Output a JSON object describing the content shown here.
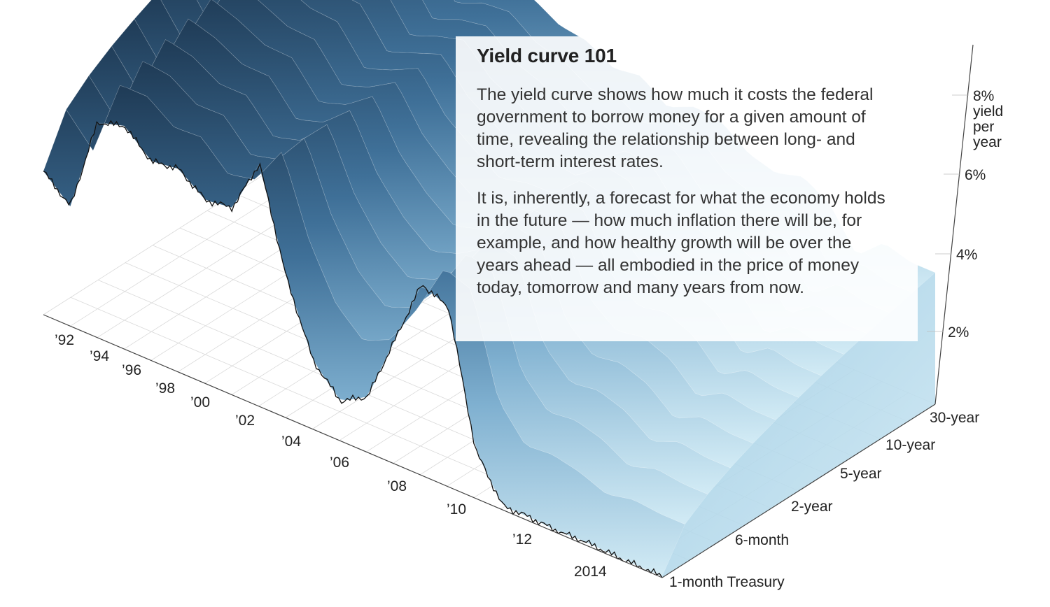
{
  "chart_data": {
    "type": "area",
    "x_axis_ticks": [
      "’92",
      "’94",
      "’96",
      "’98",
      "’00",
      "’02",
      "’04",
      "’06",
      "’08",
      "’10",
      "’12",
      "2014"
    ],
    "maturity_axis_ticks": [
      "1-month Treasury",
      "6-month",
      "2-year",
      "5-year",
      "10-year",
      "30-year"
    ],
    "yield_axis_ticks": [
      "2%",
      "4%",
      "6%",
      "8%"
    ],
    "yield_axis_label": [
      "yield",
      "per",
      "year"
    ],
    "ylim": [
      0,
      8
    ],
    "grid": true,
    "series": [
      {
        "values_by_year": [
          [
            1992,
            3.6
          ],
          [
            1993,
            3.0
          ],
          [
            1994,
            5.4
          ],
          [
            1995,
            5.6
          ],
          [
            1996,
            5.0
          ],
          [
            1997,
            5.1
          ],
          [
            1998,
            4.6
          ],
          [
            1999,
            4.7
          ],
          [
            2000,
            6.1
          ],
          [
            2001,
            3.5
          ],
          [
            2002,
            1.7
          ],
          [
            2003,
            1.0
          ],
          [
            2004,
            1.4
          ],
          [
            2005,
            3.1
          ],
          [
            2006,
            4.8
          ],
          [
            2007,
            4.5
          ],
          [
            2008,
            1.2
          ],
          [
            2009,
            0.1
          ],
          [
            2010,
            0.1
          ],
          [
            2011,
            0.05
          ],
          [
            2012,
            0.08
          ],
          [
            2013,
            0.05
          ],
          [
            2014,
            0.03
          ]
        ]
      },
      {
        "values_by_year": [
          [
            1992,
            7.7
          ],
          [
            1993,
            6.6
          ],
          [
            1994,
            7.4
          ],
          [
            1995,
            6.9
          ],
          [
            1996,
            6.7
          ],
          [
            1997,
            6.6
          ],
          [
            1998,
            5.6
          ],
          [
            1999,
            5.9
          ],
          [
            2000,
            5.9
          ],
          [
            2001,
            5.5
          ],
          [
            2002,
            5.4
          ],
          [
            2003,
            5.0
          ],
          [
            2004,
            5.1
          ],
          [
            2005,
            4.6
          ],
          [
            2006,
            4.9
          ],
          [
            2007,
            4.8
          ],
          [
            2008,
            4.3
          ],
          [
            2009,
            4.1
          ],
          [
            2010,
            4.3
          ],
          [
            2011,
            3.9
          ],
          [
            2012,
            2.9
          ],
          [
            2013,
            3.5
          ],
          [
            2014,
            3.3
          ]
        ]
      }
    ]
  },
  "info": {
    "title": "Yield curve 101",
    "para1": "The yield curve shows how much it costs the federal government to borrow money for a given amount of time, revealing the relationship between long- and short-term interest rates.",
    "para2": "It is, inherently, a forecast for what the economy holds in the future — how much inflation there will be, for example, and how healthy growth will be over the years ahead — all embodied in the price of money today, tomorrow and many years from now."
  },
  "colors": {
    "surface_dark": "#1f3b56",
    "surface_mid": "#4e86ad",
    "surface_light": "#bfe1f0",
    "front_line": "#111111",
    "grid": "#d9d9d9"
  }
}
